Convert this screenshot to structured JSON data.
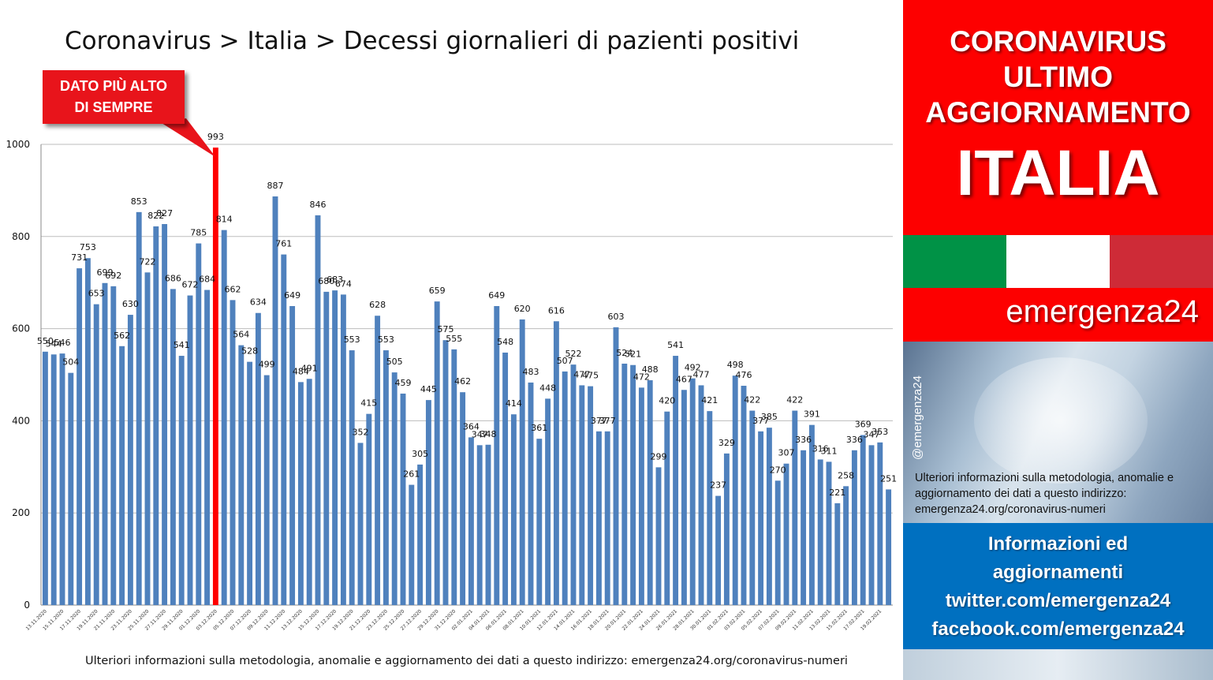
{
  "header": {
    "title": "Coronavirus > Italia > Decessi giornalieri di pazienti positivi"
  },
  "callout": {
    "text": "DATO PIÙ ALTO\nDI SEMPRE"
  },
  "footer_note": "Ulteriori informazioni sulla metodologia, anomalie e aggiornamento dei dati a questo indirizzo: emergenza24.org/coronavirus-numeri",
  "sidebar": {
    "headline_lines": [
      "CORONAVIRUS",
      "ULTIMO",
      "AGGIORNAMENTO"
    ],
    "country": "ITALIA",
    "brand": "emergenza24",
    "handle": "@emergenza24",
    "note": "Ulteriori informazioni sulla metodologia, anomalie e aggiornamento dei dati a questo indirizzo: emergenza24.org/coronavirus-numeri",
    "info_lines": [
      "Informazioni ed",
      "aggiornamenti",
      "twitter.com/emergenza24",
      "facebook.com/emergenza24"
    ],
    "flag_colors": [
      "#009246",
      "#ffffff",
      "#ce2b37"
    ]
  },
  "colors": {
    "bar": "#4f81bd",
    "highlight_bar": "#ff0000",
    "panel_red": "#fd0000",
    "panel_blue": "#0070c0"
  },
  "chart_data": {
    "type": "bar",
    "ylim": [
      0,
      1000
    ],
    "yticks": [
      0,
      200,
      400,
      600,
      800,
      1000
    ],
    "grid": true,
    "highlight_index": 20,
    "categories": [
      "13.11.2020",
      "14.11.2020",
      "15.11.2020",
      "16.11.2020",
      "17.11.2020",
      "18.11.2020",
      "19.11.2020",
      "20.11.2020",
      "21.11.2020",
      "22.11.2020",
      "23.11.2020",
      "24.11.2020",
      "25.11.2020",
      "26.11.2020",
      "27.11.2020",
      "28.11.2020",
      "29.11.2020",
      "30.11.2020",
      "01.12.2020",
      "02.12.2020",
      "03.12.2020",
      "04.12.2020",
      "05.12.2020",
      "06.12.2020",
      "07.12.2020",
      "08.12.2020",
      "09.12.2020",
      "10.12.2020",
      "11.12.2020",
      "12.12.2020",
      "13.12.2020",
      "14.12.2020",
      "15.12.2020",
      "16.12.2020",
      "17.12.2020",
      "18.12.2020",
      "19.12.2020",
      "20.12.2020",
      "21.12.2020",
      "22.12.2020",
      "23.12.2020",
      "24.12.2020",
      "25.12.2020",
      "26.12.2020",
      "27.12.2020",
      "28.12.2020",
      "29.12.2020",
      "30.12.2020",
      "31.12.2020",
      "01.01.2021",
      "02.01.2021",
      "03.01.2021",
      "04.01.2021",
      "05.01.2021",
      "06.01.2021",
      "07.01.2021",
      "08.01.2021",
      "09.01.2021",
      "10.01.2021",
      "11.01.2021",
      "12.01.2021",
      "13.01.2021",
      "14.01.2021",
      "15.01.2021",
      "16.01.2021",
      "17.01.2021",
      "18.01.2021",
      "19.01.2021",
      "20.01.2021",
      "21.01.2021",
      "22.01.2021",
      "23.01.2021",
      "24.01.2021",
      "25.01.2021",
      "26.01.2021",
      "27.01.2021",
      "28.01.2021",
      "29.01.2021",
      "30.01.2021",
      "31.01.2021",
      "01.02.2021",
      "02.02.2021",
      "03.02.2021",
      "04.02.2021",
      "05.02.2021",
      "06.02.2021",
      "07.02.2021",
      "08.02.2021",
      "09.02.2021",
      "10.02.2021",
      "11.02.2021",
      "12.02.2021",
      "13.02.2021",
      "14.02.2021",
      "15.02.2021",
      "16.02.2021",
      "17.02.2021",
      "18.02.2021",
      "19.02.2021",
      "20.02.2021"
    ],
    "values": [
      550,
      544,
      546,
      504,
      731,
      753,
      653,
      699,
      692,
      562,
      630,
      853,
      722,
      822,
      827,
      686,
      541,
      672,
      785,
      684,
      993,
      814,
      662,
      564,
      528,
      634,
      499,
      887,
      761,
      649,
      484,
      491,
      846,
      680,
      683,
      674,
      553,
      352,
      415,
      628,
      553,
      505,
      459,
      261,
      305,
      445,
      659,
      575,
      555,
      462,
      364,
      347,
      348,
      649,
      548,
      414,
      620,
      483,
      361,
      448,
      616,
      507,
      522,
      477,
      475,
      377,
      377,
      603,
      524,
      521,
      472,
      488,
      299,
      420,
      541,
      467,
      492,
      477,
      421,
      237,
      329,
      498,
      476,
      422,
      377,
      385,
      270,
      307,
      422,
      336,
      391,
      316,
      311,
      221,
      258,
      336,
      369,
      347,
      353,
      251
    ]
  }
}
